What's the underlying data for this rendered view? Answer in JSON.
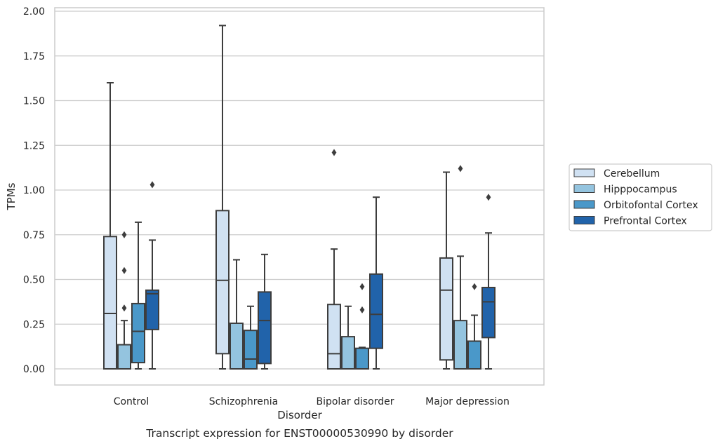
{
  "chart_data": {
    "type": "boxplot",
    "title": "",
    "caption": "Transcript expression for ENST00000530990 by disorder",
    "xlabel": "Disorder",
    "ylabel": "TPMs",
    "ylim": [
      -0.09,
      2.02
    ],
    "yticks": [
      "0.00",
      "0.25",
      "0.50",
      "0.75",
      "1.00",
      "1.25",
      "1.50",
      "1.75",
      "2.00"
    ],
    "grid": "horizontal",
    "legend_position": "right",
    "categories": [
      "Control",
      "Schizophrenia",
      "Bipolar disorder",
      "Major depression"
    ],
    "series": [
      {
        "name": "Cerebellum",
        "color": "#d0e1f2",
        "boxes": [
          {
            "whislo": 0.0,
            "q1": 0.0,
            "med": 0.31,
            "q3": 0.74,
            "whishi": 1.6,
            "fliers": []
          },
          {
            "whislo": 0.0,
            "q1": 0.085,
            "med": 0.495,
            "q3": 0.885,
            "whishi": 1.92,
            "fliers": []
          },
          {
            "whislo": 0.0,
            "q1": 0.0,
            "med": 0.085,
            "q3": 0.36,
            "whishi": 0.67,
            "fliers": [
              1.21
            ]
          },
          {
            "whislo": 0.0,
            "q1": 0.05,
            "med": 0.44,
            "q3": 0.62,
            "whishi": 1.1,
            "fliers": []
          }
        ]
      },
      {
        "name": "Hipppocampus",
        "color": "#94c4df",
        "boxes": [
          {
            "whislo": 0.0,
            "q1": 0.0,
            "med": 0.0,
            "q3": 0.135,
            "whishi": 0.27,
            "fliers": [
              0.34,
              0.55,
              0.75
            ]
          },
          {
            "whislo": 0.0,
            "q1": 0.0,
            "med": 0.0,
            "q3": 0.255,
            "whishi": 0.61,
            "fliers": []
          },
          {
            "whislo": 0.0,
            "q1": 0.0,
            "med": 0.0,
            "q3": 0.18,
            "whishi": 0.35,
            "fliers": []
          },
          {
            "whislo": 0.0,
            "q1": 0.0,
            "med": 0.0,
            "q3": 0.27,
            "whishi": 0.63,
            "fliers": [
              1.12
            ]
          }
        ]
      },
      {
        "name": "Orbitofontal Cortex",
        "color": "#4a98c9",
        "boxes": [
          {
            "whislo": 0.0,
            "q1": 0.035,
            "med": 0.21,
            "q3": 0.365,
            "whishi": 0.82,
            "fliers": []
          },
          {
            "whislo": 0.0,
            "q1": 0.0,
            "med": 0.055,
            "q3": 0.215,
            "whishi": 0.35,
            "fliers": []
          },
          {
            "whislo": 0.0,
            "q1": 0.0,
            "med": 0.0,
            "q3": 0.115,
            "whishi": 0.12,
            "fliers": [
              0.33,
              0.46
            ]
          },
          {
            "whislo": 0.0,
            "q1": 0.0,
            "med": 0.0,
            "q3": 0.155,
            "whishi": 0.3,
            "fliers": [
              0.46
            ]
          }
        ]
      },
      {
        "name": "Prefrontal Cortex",
        "color": "#2163aa",
        "boxes": [
          {
            "whislo": 0.0,
            "q1": 0.22,
            "med": 0.42,
            "q3": 0.44,
            "whishi": 0.72,
            "fliers": [
              1.03
            ]
          },
          {
            "whislo": 0.0,
            "q1": 0.03,
            "med": 0.27,
            "q3": 0.43,
            "whishi": 0.64,
            "fliers": []
          },
          {
            "whislo": 0.0,
            "q1": 0.115,
            "med": 0.305,
            "q3": 0.53,
            "whishi": 0.96,
            "fliers": []
          },
          {
            "whislo": 0.0,
            "q1": 0.175,
            "med": 0.375,
            "q3": 0.455,
            "whishi": 0.76,
            "fliers": [
              0.96
            ]
          }
        ]
      }
    ]
  }
}
